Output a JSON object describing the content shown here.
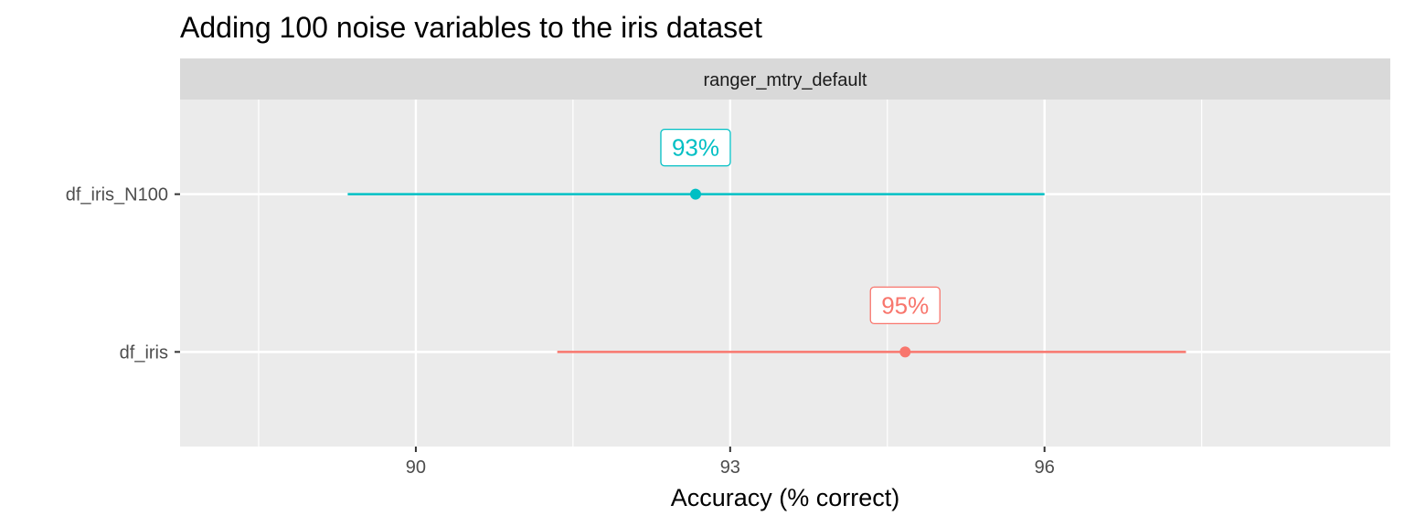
{
  "chart_data": {
    "type": "dot-interval",
    "title": "Adding 100 noise variables to the iris dataset",
    "facet_label": "ranger_mtry_default",
    "xlabel": "Accuracy (% correct)",
    "ylabel": "",
    "xlim": [
      87.75,
      99.3
    ],
    "xticks": [
      90,
      93,
      96
    ],
    "x_minor_ticks": [
      88.5,
      91.5,
      94.5,
      97.5
    ],
    "grid": true,
    "legend": "none",
    "categories": [
      "df_iris",
      "df_iris_N100"
    ],
    "series": [
      {
        "category": "df_iris",
        "estimate": 94.67,
        "low": 91.35,
        "high": 97.35,
        "label": "95%",
        "color": "#F8766D"
      },
      {
        "category": "df_iris_N100",
        "estimate": 92.67,
        "low": 89.35,
        "high": 96.0,
        "label": "93%",
        "color": "#00BFC4"
      }
    ]
  }
}
